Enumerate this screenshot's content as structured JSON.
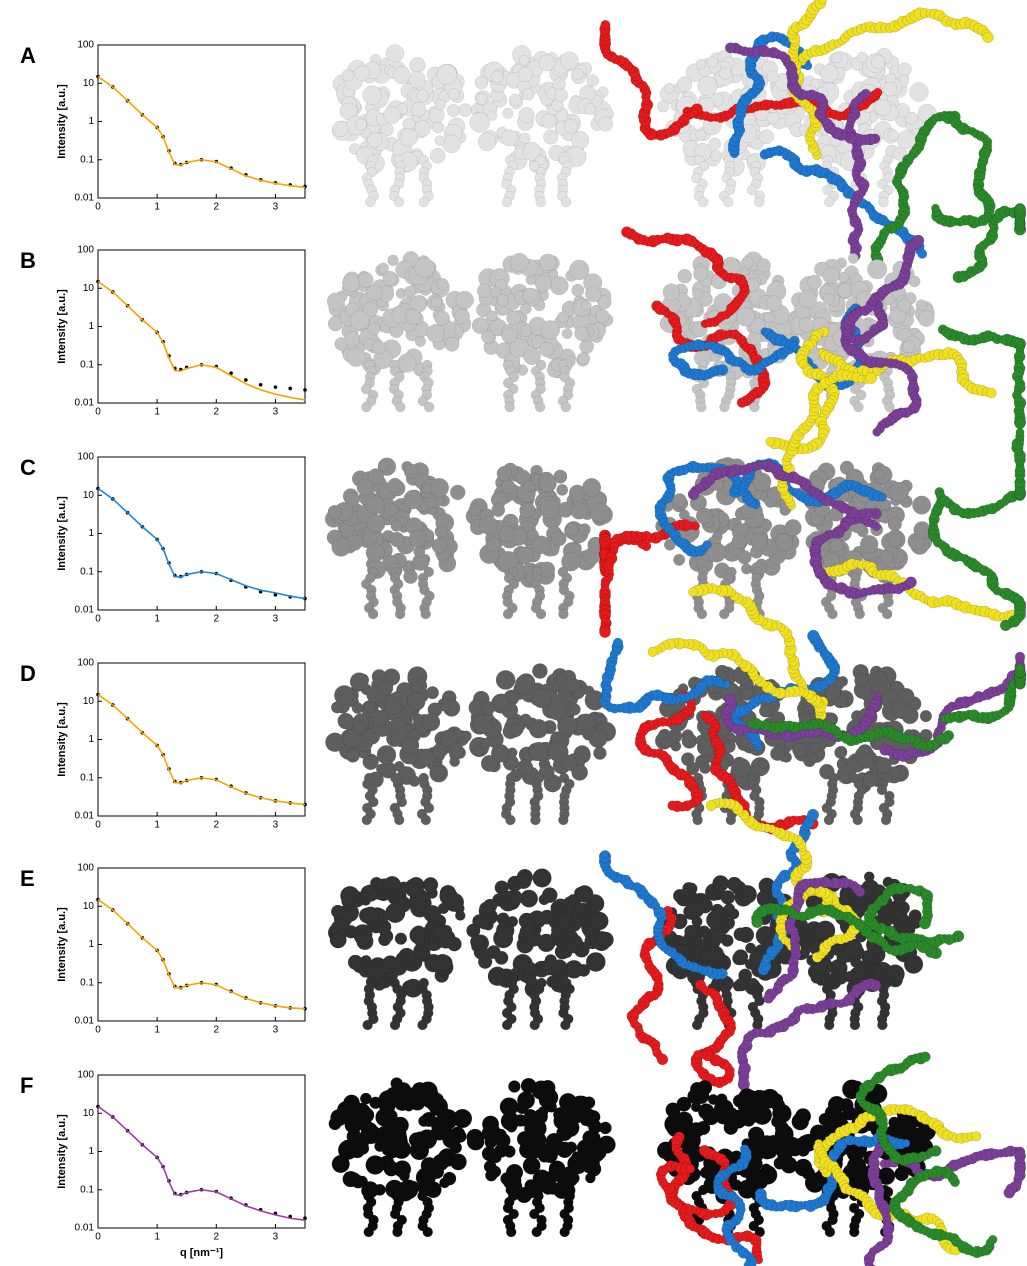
{
  "chart_data": [
    {
      "type": "line",
      "label": "A",
      "ylabel": "Intensity [a.u.]",
      "yscale": "log",
      "xlim": [
        0,
        3.5
      ],
      "ylim": [
        0.01,
        100
      ],
      "xticks": [
        0,
        1,
        2,
        3
      ],
      "yticks": [
        100,
        10,
        1,
        0.1,
        0.01
      ],
      "x": [
        0,
        0.25,
        0.5,
        0.75,
        1,
        1.1,
        1.2,
        1.3,
        1.4,
        1.5,
        1.75,
        2,
        2.25,
        2.5,
        2.75,
        3,
        3.25,
        3.5
      ],
      "series": [
        {
          "color": "#000000",
          "style": "markers",
          "values": [
            15,
            8,
            3.5,
            1.5,
            0.7,
            0.4,
            0.17,
            0.08,
            0.075,
            0.085,
            0.1,
            0.09,
            0.06,
            0.04,
            0.03,
            0.025,
            0.022,
            0.02
          ]
        },
        {
          "color": "#f5a500",
          "style": "line",
          "values": [
            15,
            8,
            3.5,
            1.5,
            0.7,
            0.4,
            0.16,
            0.075,
            0.072,
            0.085,
            0.1,
            0.088,
            0.058,
            0.038,
            0.029,
            0.024,
            0.021,
            0.019
          ]
        }
      ]
    },
    {
      "type": "line",
      "label": "B",
      "ylabel": "Intensity [a.u.]",
      "yscale": "log",
      "xlim": [
        0,
        3.5
      ],
      "ylim": [
        0.01,
        100
      ],
      "xticks": [
        0,
        1,
        2,
        3
      ],
      "yticks": [
        100,
        10,
        1,
        0.1,
        0.01
      ],
      "x": [
        0,
        0.25,
        0.5,
        0.75,
        1,
        1.1,
        1.2,
        1.3,
        1.4,
        1.5,
        1.75,
        2,
        2.25,
        2.5,
        2.75,
        3,
        3.25,
        3.5
      ],
      "series": [
        {
          "color": "#000000",
          "style": "markers",
          "values": [
            15,
            8,
            3.5,
            1.5,
            0.7,
            0.4,
            0.17,
            0.08,
            0.075,
            0.085,
            0.1,
            0.09,
            0.06,
            0.04,
            0.03,
            0.026,
            0.024,
            0.022
          ]
        },
        {
          "color": "#f5a500",
          "style": "line",
          "values": [
            15,
            8,
            3.5,
            1.5,
            0.7,
            0.38,
            0.15,
            0.07,
            0.068,
            0.08,
            0.1,
            0.085,
            0.052,
            0.032,
            0.022,
            0.017,
            0.014,
            0.012
          ]
        }
      ]
    },
    {
      "type": "line",
      "label": "C",
      "ylabel": "Intensity [a.u.]",
      "yscale": "log",
      "xlim": [
        0,
        3.5
      ],
      "ylim": [
        0.01,
        100
      ],
      "xticks": [
        0,
        1,
        2,
        3
      ],
      "yticks": [
        100,
        10,
        1,
        0.1,
        0.01
      ],
      "x": [
        0,
        0.25,
        0.5,
        0.75,
        1,
        1.1,
        1.2,
        1.3,
        1.4,
        1.5,
        1.75,
        2,
        2.25,
        2.5,
        2.75,
        3,
        3.25,
        3.5
      ],
      "series": [
        {
          "color": "#000000",
          "style": "markers",
          "values": [
            15,
            8,
            3.5,
            1.5,
            0.7,
            0.4,
            0.17,
            0.08,
            0.075,
            0.085,
            0.1,
            0.09,
            0.06,
            0.04,
            0.03,
            0.025,
            0.022,
            0.02
          ]
        },
        {
          "color": "#1e88d8",
          "style": "line",
          "values": [
            15,
            8,
            3.5,
            1.5,
            0.7,
            0.4,
            0.16,
            0.075,
            0.072,
            0.085,
            0.1,
            0.09,
            0.062,
            0.043,
            0.033,
            0.028,
            0.023,
            0.02
          ]
        }
      ]
    },
    {
      "type": "line",
      "label": "D",
      "ylabel": "Intensity [a.u.]",
      "yscale": "log",
      "xlim": [
        0,
        3.5
      ],
      "ylim": [
        0.01,
        100
      ],
      "xticks": [
        0,
        1,
        2,
        3
      ],
      "yticks": [
        100,
        10,
        1,
        0.1,
        0.01
      ],
      "x": [
        0,
        0.25,
        0.5,
        0.75,
        1,
        1.1,
        1.2,
        1.3,
        1.4,
        1.5,
        1.75,
        2,
        2.25,
        2.5,
        2.75,
        3,
        3.25,
        3.5
      ],
      "series": [
        {
          "color": "#000000",
          "style": "markers",
          "values": [
            15,
            8,
            3.5,
            1.5,
            0.7,
            0.4,
            0.17,
            0.08,
            0.075,
            0.085,
            0.1,
            0.09,
            0.06,
            0.04,
            0.03,
            0.025,
            0.022,
            0.02
          ]
        },
        {
          "color": "#f5a500",
          "style": "line",
          "values": [
            15,
            8,
            3.5,
            1.5,
            0.7,
            0.4,
            0.16,
            0.075,
            0.072,
            0.085,
            0.1,
            0.088,
            0.058,
            0.039,
            0.03,
            0.025,
            0.022,
            0.02
          ]
        }
      ]
    },
    {
      "type": "line",
      "label": "E",
      "ylabel": "Intensity [a.u.]",
      "yscale": "log",
      "xlim": [
        0,
        3.5
      ],
      "ylim": [
        0.01,
        100
      ],
      "xticks": [
        0,
        1,
        2,
        3
      ],
      "yticks": [
        100,
        10,
        1,
        0.1,
        0.01
      ],
      "x": [
        0,
        0.25,
        0.5,
        0.75,
        1,
        1.1,
        1.2,
        1.3,
        1.4,
        1.5,
        1.75,
        2,
        2.25,
        2.5,
        2.75,
        3,
        3.25,
        3.5
      ],
      "series": [
        {
          "color": "#000000",
          "style": "markers",
          "values": [
            15,
            8,
            3.5,
            1.5,
            0.7,
            0.4,
            0.17,
            0.08,
            0.075,
            0.085,
            0.1,
            0.09,
            0.06,
            0.04,
            0.03,
            0.025,
            0.022,
            0.021
          ]
        },
        {
          "color": "#f5a500",
          "style": "line",
          "values": [
            15,
            8,
            3.5,
            1.5,
            0.7,
            0.4,
            0.16,
            0.075,
            0.072,
            0.085,
            0.1,
            0.088,
            0.058,
            0.039,
            0.03,
            0.025,
            0.022,
            0.021
          ]
        }
      ]
    },
    {
      "type": "line",
      "label": "F",
      "ylabel": "Intensity [a.u.]",
      "xlabel": "q [nm⁻¹]",
      "yscale": "log",
      "xlim": [
        0,
        3.5
      ],
      "ylim": [
        0.01,
        100
      ],
      "xticks": [
        0,
        1,
        2,
        3
      ],
      "yticks": [
        100,
        10,
        1,
        0.1,
        0.01
      ],
      "x": [
        0,
        0.25,
        0.5,
        0.75,
        1,
        1.1,
        1.2,
        1.3,
        1.4,
        1.5,
        1.75,
        2,
        2.25,
        2.5,
        2.75,
        3,
        3.25,
        3.5
      ],
      "series": [
        {
          "color": "#000000",
          "style": "markers",
          "values": [
            15,
            8,
            3.5,
            1.5,
            0.7,
            0.4,
            0.17,
            0.08,
            0.075,
            0.085,
            0.1,
            0.09,
            0.06,
            0.04,
            0.03,
            0.024,
            0.02,
            0.018
          ]
        },
        {
          "color": "#9a3fa0",
          "style": "line",
          "values": [
            15,
            8,
            3.5,
            1.5,
            0.7,
            0.4,
            0.16,
            0.075,
            0.072,
            0.085,
            0.1,
            0.088,
            0.058,
            0.038,
            0.028,
            0.022,
            0.018,
            0.016
          ]
        }
      ]
    }
  ]
}
